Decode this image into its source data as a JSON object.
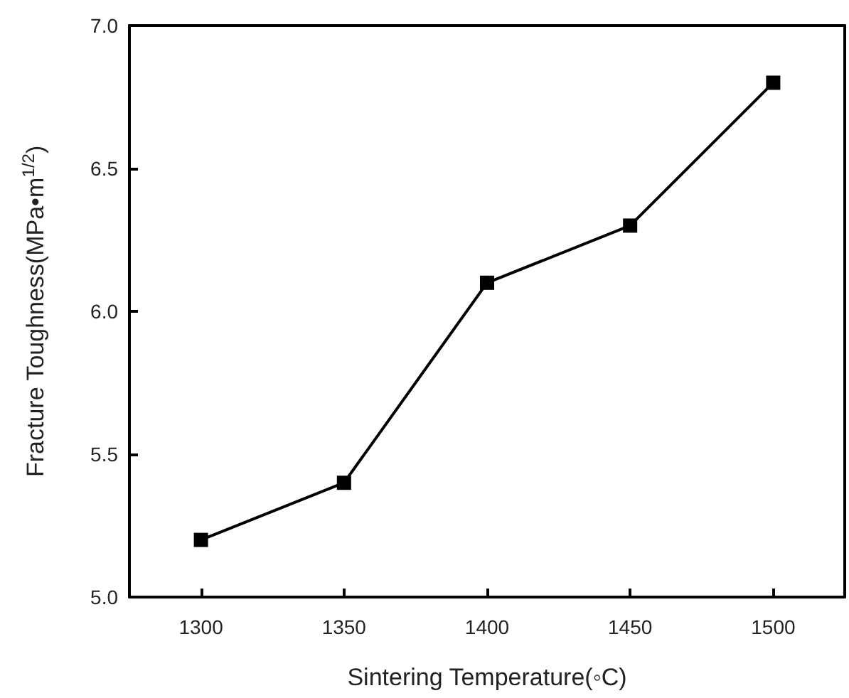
{
  "chart_data": {
    "type": "line",
    "xlabel": "Sintering Temperature(◦C)",
    "ylabel": "Fracture Toughness(MPa•m$^{1/2}$)",
    "x": [
      1300,
      1350,
      1400,
      1450,
      1500
    ],
    "series": [
      {
        "color": "#000000",
        "values": [
          5.2,
          5.4,
          6.1,
          6.3,
          6.8
        ]
      }
    ],
    "xlim": [
      1275,
      1525
    ],
    "xticks": [
      1300,
      1350,
      1400,
      1450,
      1500
    ],
    "ylim": [
      5.0,
      7.0
    ],
    "yticks": [
      {
        "value": 5,
        "label": "5.0"
      },
      {
        "value": 5.5,
        "label": "5.5"
      },
      {
        "value": 6,
        "label": "6.0"
      },
      {
        "value": 6.5,
        "label": "6.5"
      },
      {
        "value": 7,
        "label": "7.0"
      }
    ],
    "grid": false,
    "marker": "square",
    "line_style": "solid"
  }
}
